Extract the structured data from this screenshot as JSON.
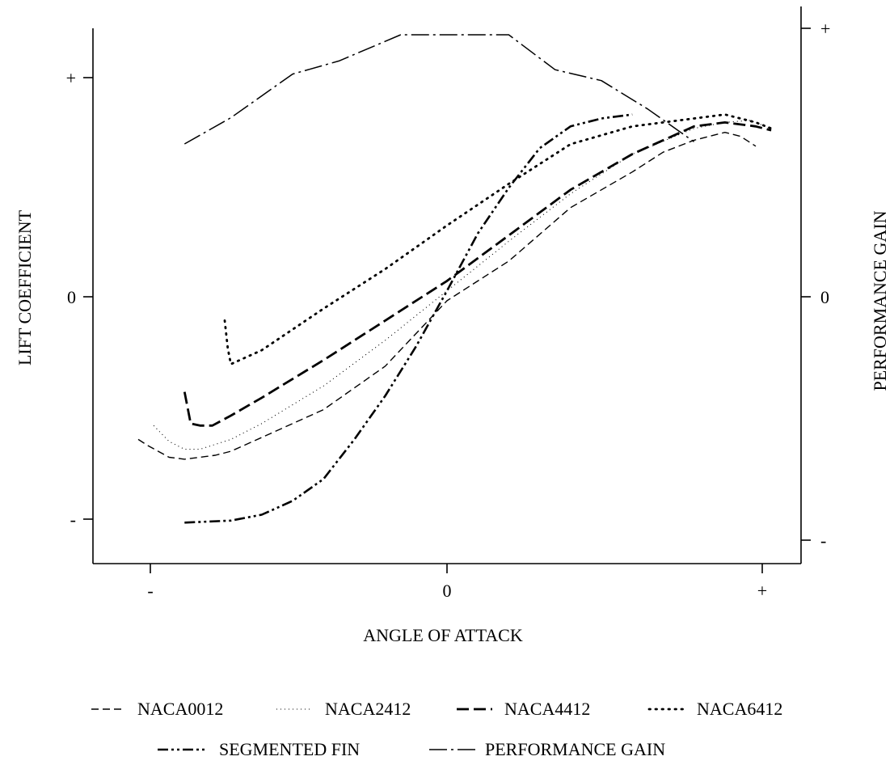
{
  "chart_data": {
    "type": "line",
    "xlabel": "ANGLE OF ATTACK",
    "ylabel": "LIFT COEFFICIENT",
    "y2label": "PERFORMANCE GAIN",
    "xticks": [
      "-",
      "0",
      "+"
    ],
    "yticks": [
      "-",
      "0",
      "+"
    ],
    "y2ticks": [
      "-",
      "0",
      "+"
    ],
    "xlim": [
      -1.1,
      1.15
    ],
    "ylim": [
      -1.2,
      1.0
    ],
    "y2lim": [
      -1.1,
      1.2
    ],
    "grid": false,
    "legend_position": "bottom",
    "series": [
      {
        "name": "NACA0012",
        "axis": "left",
        "style": "dash",
        "color": "#000000",
        "points": [
          [
            -1.0,
            -0.72
          ],
          [
            -0.97,
            -0.75
          ],
          [
            -0.9,
            -0.81
          ],
          [
            -0.85,
            -0.82
          ],
          [
            -0.75,
            -0.8
          ],
          [
            -0.7,
            -0.78
          ],
          [
            -0.6,
            -0.71
          ],
          [
            -0.4,
            -0.57
          ],
          [
            -0.2,
            -0.35
          ],
          [
            0.0,
            -0.02
          ],
          [
            0.2,
            0.18
          ],
          [
            0.4,
            0.45
          ],
          [
            0.6,
            0.63
          ],
          [
            0.7,
            0.73
          ],
          [
            0.8,
            0.79
          ],
          [
            0.9,
            0.83
          ],
          [
            0.95,
            0.81
          ],
          [
            1.0,
            0.76
          ]
        ]
      },
      {
        "name": "NACA2412",
        "axis": "left",
        "style": "dot-fine",
        "color": "#000000",
        "points": [
          [
            -0.95,
            -0.65
          ],
          [
            -0.9,
            -0.73
          ],
          [
            -0.85,
            -0.77
          ],
          [
            -0.8,
            -0.77
          ],
          [
            -0.7,
            -0.72
          ],
          [
            -0.6,
            -0.64
          ],
          [
            -0.4,
            -0.45
          ],
          [
            -0.2,
            -0.22
          ],
          [
            0.0,
            0.03
          ],
          [
            0.2,
            0.28
          ],
          [
            0.4,
            0.52
          ],
          [
            0.6,
            0.72
          ],
          [
            0.8,
            0.85
          ],
          [
            0.9,
            0.88
          ],
          [
            0.98,
            0.89
          ],
          [
            1.05,
            0.85
          ]
        ]
      },
      {
        "name": "NACA4412",
        "axis": "left",
        "style": "longdash",
        "color": "#000000",
        "points": [
          [
            -0.85,
            -0.48
          ],
          [
            -0.84,
            -0.56
          ],
          [
            -0.83,
            -0.64
          ],
          [
            -0.8,
            -0.65
          ],
          [
            -0.76,
            -0.65
          ],
          [
            -0.7,
            -0.6
          ],
          [
            -0.6,
            -0.51
          ],
          [
            -0.4,
            -0.32
          ],
          [
            -0.2,
            -0.12
          ],
          [
            0.0,
            0.08
          ],
          [
            0.2,
            0.31
          ],
          [
            0.4,
            0.54
          ],
          [
            0.6,
            0.72
          ],
          [
            0.8,
            0.86
          ],
          [
            0.9,
            0.88
          ],
          [
            1.0,
            0.86
          ],
          [
            1.05,
            0.84
          ]
        ]
      },
      {
        "name": "NACA6412",
        "axis": "left",
        "style": "dot",
        "color": "#000000",
        "points": [
          [
            -0.72,
            -0.12
          ],
          [
            -0.71,
            -0.26
          ],
          [
            -0.7,
            -0.34
          ],
          [
            -0.6,
            -0.27
          ],
          [
            -0.4,
            -0.06
          ],
          [
            -0.2,
            0.14
          ],
          [
            0.0,
            0.36
          ],
          [
            0.2,
            0.57
          ],
          [
            0.4,
            0.77
          ],
          [
            0.6,
            0.86
          ],
          [
            0.8,
            0.9
          ],
          [
            0.9,
            0.92
          ],
          [
            1.0,
            0.88
          ],
          [
            1.05,
            0.85
          ]
        ]
      },
      {
        "name": "SEGMENTED FIN",
        "axis": "left",
        "style": "dashdotdot",
        "color": "#000000",
        "points": [
          [
            -0.85,
            -1.14
          ],
          [
            -0.7,
            -1.13
          ],
          [
            -0.6,
            -1.1
          ],
          [
            -0.5,
            -1.03
          ],
          [
            -0.4,
            -0.92
          ],
          [
            -0.3,
            -0.72
          ],
          [
            -0.2,
            -0.5
          ],
          [
            -0.1,
            -0.25
          ],
          [
            0.0,
            0.03
          ],
          [
            0.1,
            0.32
          ],
          [
            0.2,
            0.55
          ],
          [
            0.3,
            0.75
          ],
          [
            0.4,
            0.86
          ],
          [
            0.5,
            0.9
          ],
          [
            0.6,
            0.92
          ]
        ]
      },
      {
        "name": "PERFORMANCE GAIN",
        "axis": "right",
        "style": "dashdot",
        "color": "#000000",
        "points": [
          [
            -0.85,
            0.7
          ],
          [
            -0.7,
            0.82
          ],
          [
            -0.5,
            1.02
          ],
          [
            -0.35,
            1.08
          ],
          [
            -0.15,
            1.2
          ],
          [
            0.0,
            1.2
          ],
          [
            0.2,
            1.2
          ],
          [
            0.35,
            1.04
          ],
          [
            0.5,
            0.99
          ],
          [
            0.65,
            0.86
          ],
          [
            0.8,
            0.71
          ]
        ]
      }
    ]
  }
}
